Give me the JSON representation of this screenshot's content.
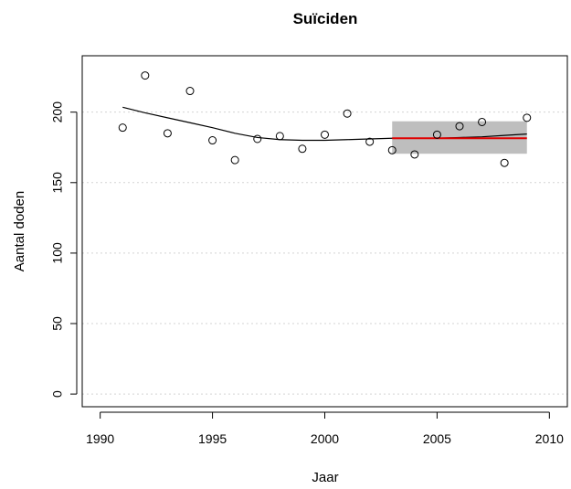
{
  "chart_data": {
    "type": "scatter",
    "title": "Suïciden",
    "xlabel": "Jaar",
    "ylabel": "Aantal doden",
    "xlim": [
      1989.2,
      2010.8
    ],
    "ylim": [
      -9,
      240
    ],
    "x_ticks": [
      1990,
      1995,
      2000,
      2005,
      2010
    ],
    "y_ticks": [
      0,
      50,
      100,
      150,
      200
    ],
    "grid": "horizontal dotted",
    "points": {
      "x": [
        1991,
        1992,
        1993,
        1994,
        1995,
        1996,
        1997,
        1998,
        1999,
        2000,
        2001,
        2002,
        2003,
        2004,
        2005,
        2006,
        2007,
        2008,
        2009
      ],
      "y": [
        189,
        226,
        185,
        215,
        180,
        166,
        181,
        183,
        174,
        184,
        199,
        179,
        173,
        170,
        184,
        190,
        193,
        164,
        196
      ]
    },
    "trend": {
      "x": [
        1991,
        1992,
        1993,
        1994,
        1995,
        1996,
        1997,
        1998,
        1999,
        2000,
        2001,
        2002,
        2003,
        2004,
        2005,
        2006,
        2007,
        2008,
        2009
      ],
      "y": [
        203.5,
        199.5,
        196,
        192.5,
        189,
        185,
        182,
        180.5,
        180,
        180,
        180.5,
        181,
        181.5,
        181.5,
        181.5,
        182,
        182.5,
        183.5,
        184.5
      ]
    },
    "band": {
      "x": [
        2003,
        2009
      ],
      "y": [
        170.5,
        193.5
      ]
    },
    "mean": {
      "x": [
        2003,
        2009
      ],
      "y": 181.5
    },
    "colors": {
      "band": "#bebebe",
      "mean": "#e00000",
      "points": "#000000",
      "trend": "#000000"
    }
  }
}
